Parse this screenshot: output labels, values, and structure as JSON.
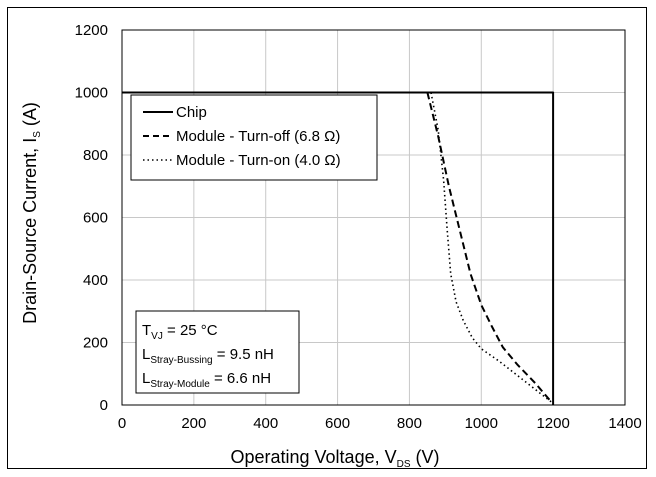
{
  "chart_data": {
    "type": "line",
    "xlabel": "Operating Voltage, V",
    "xlabel_sub": "DS",
    "xlabel_unit": " (V)",
    "ylabel": "Drain-Source Current, I",
    "ylabel_sub": "S",
    "ylabel_unit": " (A)",
    "xlim": [
      0,
      1400
    ],
    "ylim": [
      0,
      1200
    ],
    "x_ticks": [
      0,
      200,
      400,
      600,
      800,
      1000,
      1200,
      1400
    ],
    "y_ticks": [
      0,
      200,
      400,
      600,
      800,
      1000,
      1200
    ],
    "grid": true,
    "legend_position": "top-left",
    "series": [
      {
        "name": "Chip",
        "style": "solid",
        "color": "#000000",
        "points": [
          [
            0,
            1000
          ],
          [
            1200,
            1000
          ],
          [
            1200,
            0
          ]
        ]
      },
      {
        "name": "Module - Turn-off (6.8 Ω)",
        "style": "dashed",
        "color": "#000000",
        "points": [
          [
            850,
            1000
          ],
          [
            880,
            860
          ],
          [
            910,
            700
          ],
          [
            940,
            560
          ],
          [
            970,
            420
          ],
          [
            1000,
            320
          ],
          [
            1030,
            250
          ],
          [
            1060,
            185
          ],
          [
            1100,
            130
          ],
          [
            1150,
            70
          ],
          [
            1195,
            10
          ]
        ]
      },
      {
        "name": "Module - Turn-on (4.0 Ω)",
        "style": "dotted",
        "color": "#000000",
        "points": [
          [
            860,
            1000
          ],
          [
            880,
            880
          ],
          [
            895,
            720
          ],
          [
            905,
            560
          ],
          [
            915,
            420
          ],
          [
            930,
            330
          ],
          [
            950,
            270
          ],
          [
            975,
            215
          ],
          [
            1000,
            180
          ],
          [
            1050,
            140
          ],
          [
            1100,
            95
          ],
          [
            1150,
            50
          ],
          [
            1195,
            10
          ]
        ]
      }
    ],
    "annotation": {
      "line1": {
        "main": "T",
        "sub": "VJ",
        "rest": " = 25 °C"
      },
      "line2": {
        "main": "L",
        "sub": "Stray-Bussing",
        "rest": " = 9.5 nH"
      },
      "line3": {
        "main": "L",
        "sub": "Stray-Module",
        "rest": " = 6.6 nH"
      }
    }
  }
}
